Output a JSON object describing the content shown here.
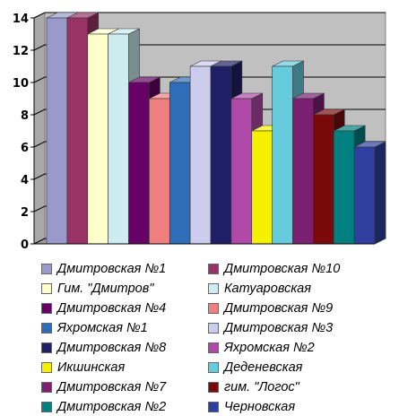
{
  "chart_data": {
    "type": "bar",
    "style": "3d",
    "categories": [
      ""
    ],
    "series": [
      {
        "name": "Дмитровская №1",
        "values": [
          14
        ],
        "color": "#9999CC"
      },
      {
        "name": "Дмитровская №10",
        "values": [
          14
        ],
        "color": "#993366"
      },
      {
        "name": "Гим. \"Дмитров\"",
        "values": [
          13
        ],
        "color": "#FFFFCC"
      },
      {
        "name": "Катуаровская",
        "values": [
          13
        ],
        "color": "#CCECF0"
      },
      {
        "name": "Дмитровская №4",
        "values": [
          10
        ],
        "color": "#660066"
      },
      {
        "name": "Дмитровская №9",
        "values": [
          9
        ],
        "color": "#F08080"
      },
      {
        "name": "Яхромская №1",
        "values": [
          10
        ],
        "color": "#2E6DB8"
      },
      {
        "name": "Дмитровская №3",
        "values": [
          11
        ],
        "color": "#CCCCEE"
      },
      {
        "name": "Дмитровская №8",
        "values": [
          11
        ],
        "color": "#1F1F66"
      },
      {
        "name": "Яхромская №2",
        "values": [
          9
        ],
        "color": "#B04AA8"
      },
      {
        "name": "Икшинская",
        "values": [
          7
        ],
        "color": "#F5F000"
      },
      {
        "name": "Деденевская",
        "values": [
          11
        ],
        "color": "#66CCDD"
      },
      {
        "name": "Дмитровская №7",
        "values": [
          9
        ],
        "color": "#7A2070"
      },
      {
        "name": "гим. \"Логос\"",
        "values": [
          8
        ],
        "color": "#7A0A0A"
      },
      {
        "name": "Дмитровская №2",
        "values": [
          7
        ],
        "color": "#008080"
      },
      {
        "name": "Черновская",
        "values": [
          6
        ],
        "color": "#2E3FA0"
      }
    ],
    "ylim": [
      0,
      14
    ],
    "yticks": [
      0,
      2,
      4,
      6,
      8,
      10,
      12,
      14
    ],
    "grid": true,
    "legend": "bottom",
    "wall_color": "#C0C0C0"
  }
}
